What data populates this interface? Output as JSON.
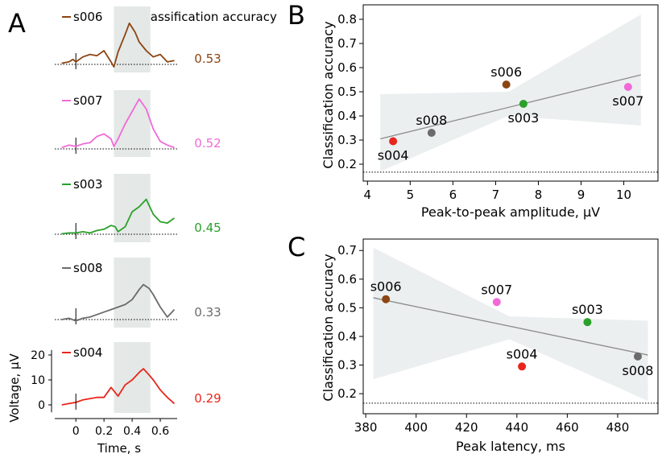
{
  "colors": {
    "s006": "#8b4513",
    "s007": "#f06ad8",
    "s003": "#2aa12a",
    "s008": "#6b6b6b",
    "s004": "#e8261c",
    "band": "#e4e8e6",
    "fit": "#8c8c8c",
    "ci": "#eceff0"
  },
  "panel_labels": [
    "A",
    "B",
    "C"
  ],
  "chart_data": [
    {
      "id": "A",
      "type": "line",
      "header": "Classification accuracy",
      "xlabel": "Time, s",
      "ylabel": "Voltage, µV",
      "xlim": [
        -0.15,
        0.72
      ],
      "xticks": [
        0,
        0.2,
        0.4,
        0.6
      ],
      "xtick_labels": [
        "0",
        "0.2",
        "0.4",
        "0.6"
      ],
      "ylim": [
        -3,
        22
      ],
      "yticks": [
        0,
        10,
        20
      ],
      "ytick_labels": [
        "0",
        "10",
        "20"
      ],
      "highlight_window": [
        0.27,
        0.53
      ],
      "series": [
        {
          "name": "s006",
          "accuracy": "0.53",
          "x": [
            -0.1,
            -0.05,
            -0.02,
            0,
            0.05,
            0.1,
            0.15,
            0.2,
            0.25,
            0.27,
            0.3,
            0.35,
            0.38,
            0.42,
            0.45,
            0.5,
            0.55,
            0.6,
            0.65,
            0.7
          ],
          "y": [
            0.5,
            1.0,
            2.0,
            1.0,
            3.0,
            4.0,
            3.5,
            5.5,
            1.0,
            -1.0,
            5.0,
            12.0,
            16.5,
            13.0,
            9.0,
            5.5,
            3.0,
            4.0,
            1.0,
            1.5
          ]
        },
        {
          "name": "s007",
          "accuracy": "0.52",
          "x": [
            -0.1,
            -0.05,
            0,
            0.05,
            0.1,
            0.15,
            0.2,
            0.25,
            0.27,
            0.3,
            0.35,
            0.4,
            0.45,
            0.5,
            0.55,
            0.6,
            0.65,
            0.7
          ],
          "y": [
            0.5,
            1.5,
            1.0,
            2.0,
            2.5,
            5.0,
            6.0,
            4.0,
            1.0,
            4.0,
            10.0,
            15.0,
            20.0,
            16.0,
            8.0,
            3.0,
            1.5,
            0.5
          ]
        },
        {
          "name": "s003",
          "accuracy": "0.45",
          "x": [
            -0.1,
            -0.05,
            0,
            0.05,
            0.1,
            0.15,
            0.2,
            0.25,
            0.28,
            0.3,
            0.35,
            0.4,
            0.45,
            0.5,
            0.55,
            0.6,
            0.65,
            0.7
          ],
          "y": [
            0.2,
            0.5,
            0.5,
            1.0,
            0.5,
            1.5,
            2.0,
            3.5,
            3.0,
            1.0,
            3.0,
            9.0,
            11.0,
            14.0,
            8.0,
            5.0,
            4.5,
            6.5
          ]
        },
        {
          "name": "s008",
          "accuracy": "0.33",
          "x": [
            -0.1,
            -0.05,
            0,
            0.05,
            0.1,
            0.15,
            0.2,
            0.25,
            0.3,
            0.35,
            0.4,
            0.45,
            0.48,
            0.52,
            0.55,
            0.6,
            0.65,
            0.7
          ],
          "y": [
            0.0,
            0.5,
            -0.5,
            0.5,
            1.0,
            2.0,
            3.0,
            4.0,
            5.0,
            6.0,
            8.0,
            12.0,
            14.0,
            12.5,
            10.0,
            5.0,
            1.0,
            4.0
          ]
        },
        {
          "name": "s004",
          "accuracy": "0.29",
          "x": [
            -0.1,
            -0.05,
            0,
            0.05,
            0.1,
            0.15,
            0.2,
            0.25,
            0.3,
            0.35,
            0.4,
            0.45,
            0.48,
            0.52,
            0.55,
            0.6,
            0.65,
            0.7
          ],
          "y": [
            0.0,
            0.5,
            1.0,
            2.0,
            2.5,
            3.0,
            3.0,
            7.0,
            3.5,
            8.0,
            10.0,
            13.0,
            14.5,
            12.0,
            10.0,
            6.0,
            3.0,
            0.5
          ]
        }
      ]
    },
    {
      "id": "B",
      "type": "scatter",
      "xlabel": "Peak-to-peak amplitude, µV",
      "ylabel": "Classification accuracy",
      "xlim": [
        3.9,
        10.8
      ],
      "ylim": [
        0.13,
        0.86
      ],
      "xticks": [
        4,
        5,
        6,
        7,
        8,
        9,
        10
      ],
      "xtick_labels": [
        "4",
        "5",
        "6",
        "7",
        "8",
        "9",
        "10"
      ],
      "yticks": [
        0.2,
        0.3,
        0.4,
        0.5,
        0.6,
        0.7,
        0.8
      ],
      "ytick_labels": [
        "0.2",
        "0.3",
        "0.4",
        "0.5",
        "0.6",
        "0.7",
        "0.8"
      ],
      "chance_level": 0.167,
      "fit": {
        "x": [
          4.3,
          10.4
        ],
        "y": [
          0.305,
          0.57
        ]
      },
      "ci": {
        "x": [
          4.3,
          7.3,
          10.4
        ],
        "upper": [
          0.49,
          0.5,
          0.82
        ],
        "lower": [
          0.17,
          0.4,
          0.36
        ]
      },
      "points": [
        {
          "name": "s004",
          "x": 4.6,
          "y": 0.295,
          "label_pos": "below"
        },
        {
          "name": "s008",
          "x": 5.5,
          "y": 0.33,
          "label_pos": "above"
        },
        {
          "name": "s006",
          "x": 7.25,
          "y": 0.53,
          "label_pos": "above"
        },
        {
          "name": "s003",
          "x": 7.65,
          "y": 0.45,
          "label_pos": "below"
        },
        {
          "name": "s007",
          "x": 10.1,
          "y": 0.52,
          "label_pos": "below"
        }
      ]
    },
    {
      "id": "C",
      "type": "scatter",
      "xlabel": "Peak latency, ms",
      "ylabel": "Classification accuracy",
      "xlim": [
        379,
        496
      ],
      "ylim": [
        0.13,
        0.74
      ],
      "xticks": [
        380,
        400,
        420,
        440,
        460,
        480
      ],
      "xtick_labels": [
        "380",
        "400",
        "420",
        "440",
        "460",
        "480"
      ],
      "yticks": [
        0.2,
        0.3,
        0.4,
        0.5,
        0.6,
        0.7
      ],
      "ytick_labels": [
        "0.2",
        "0.3",
        "0.4",
        "0.5",
        "0.6",
        "0.7"
      ],
      "chance_level": 0.167,
      "fit": {
        "x": [
          383,
          492
        ],
        "y": [
          0.535,
          0.335
        ]
      },
      "ci": {
        "x": [
          383,
          437,
          492
        ],
        "upper": [
          0.71,
          0.47,
          0.455
        ],
        "lower": [
          0.25,
          0.39,
          0.175
        ]
      },
      "points": [
        {
          "name": "s006",
          "x": 388,
          "y": 0.53,
          "label_pos": "above"
        },
        {
          "name": "s007",
          "x": 432,
          "y": 0.52,
          "label_pos": "above"
        },
        {
          "name": "s004",
          "x": 442,
          "y": 0.295,
          "label_pos": "above"
        },
        {
          "name": "s003",
          "x": 468,
          "y": 0.45,
          "label_pos": "above"
        },
        {
          "name": "s008",
          "x": 488,
          "y": 0.33,
          "label_pos": "below"
        }
      ]
    }
  ]
}
